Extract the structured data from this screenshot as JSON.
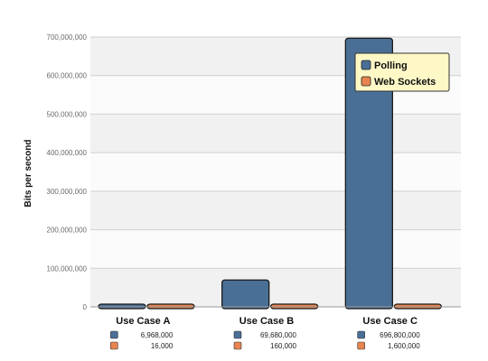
{
  "chart_data": {
    "type": "bar",
    "title": "",
    "xlabel": "",
    "ylabel": "Bits per second",
    "ylim": [
      0,
      700000000
    ],
    "yticks": [
      0,
      100000000,
      200000000,
      300000000,
      400000000,
      500000000,
      600000000,
      700000000
    ],
    "ytick_labels": [
      "0",
      "100,000,000",
      "200,000,000",
      "300,000,000",
      "400,000,000",
      "500,000,000",
      "600,000,000",
      "700,000,000"
    ],
    "categories": [
      "Use Case A",
      "Use Case B",
      "Use Case C"
    ],
    "series": [
      {
        "name": "Polling",
        "color": "#4a6f96",
        "values": [
          6968000,
          69680000,
          696800000
        ],
        "value_labels": [
          "6,968,000",
          "69,680,000",
          "696,800,000"
        ]
      },
      {
        "name": "Web Sockets",
        "color": "#e7844f",
        "values": [
          16000,
          160000,
          1600000
        ],
        "value_labels": [
          "16,000",
          "160,000",
          "1,600,000"
        ]
      }
    ],
    "grid": true,
    "legend": {
      "position": "top-right",
      "background": "#fdf8c6"
    }
  }
}
